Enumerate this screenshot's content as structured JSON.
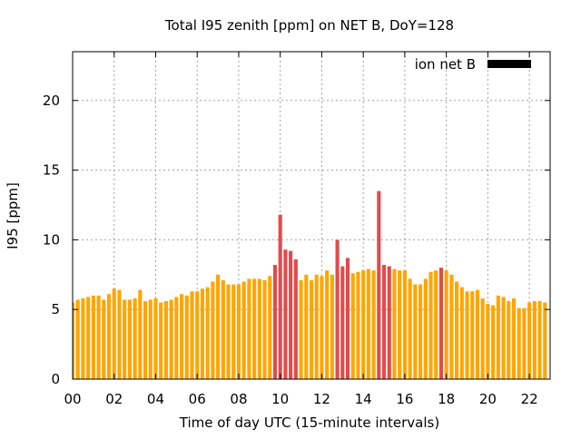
{
  "chart_data": {
    "type": "bar",
    "title": "Total I95 zenith [ppm] on NET B, DoY=128",
    "xlabel": "Time of day UTC (15-minute intervals)",
    "ylabel": "I95 [ppm]",
    "xlim": [
      0,
      23.0
    ],
    "ylim": [
      0,
      23.5
    ],
    "bar_width_hours": 0.18,
    "x_ticks": [
      {
        "value": 0,
        "label": "00"
      },
      {
        "value": 2,
        "label": "02"
      },
      {
        "value": 4,
        "label": "04"
      },
      {
        "value": 6,
        "label": "06"
      },
      {
        "value": 8,
        "label": "08"
      },
      {
        "value": 10,
        "label": "10"
      },
      {
        "value": 12,
        "label": "12"
      },
      {
        "value": 14,
        "label": "14"
      },
      {
        "value": 16,
        "label": "16"
      },
      {
        "value": 18,
        "label": "18"
      },
      {
        "value": 20,
        "label": "20"
      },
      {
        "value": 22,
        "label": "22"
      }
    ],
    "y_ticks": [
      {
        "value": 0,
        "label": "0"
      },
      {
        "value": 5,
        "label": "5"
      },
      {
        "value": 10,
        "label": "10"
      },
      {
        "value": 15,
        "label": "15"
      },
      {
        "value": 20,
        "label": "20"
      }
    ],
    "grid": true,
    "legend": {
      "position": "top-right",
      "label": "ion net B",
      "color": "#000000"
    },
    "colors": {
      "normal": "#ffa500",
      "high": "#e34a4a"
    },
    "series": [
      {
        "name": "ion net B",
        "values": [
          {
            "x": 0.0,
            "y": 5.5,
            "level": "normal"
          },
          {
            "x": 0.25,
            "y": 5.7,
            "level": "normal"
          },
          {
            "x": 0.5,
            "y": 5.8,
            "level": "normal"
          },
          {
            "x": 0.75,
            "y": 5.9,
            "level": "normal"
          },
          {
            "x": 1.0,
            "y": 6.0,
            "level": "normal"
          },
          {
            "x": 1.25,
            "y": 6.0,
            "level": "normal"
          },
          {
            "x": 1.5,
            "y": 5.7,
            "level": "normal"
          },
          {
            "x": 1.75,
            "y": 6.1,
            "level": "normal"
          },
          {
            "x": 2.0,
            "y": 6.5,
            "level": "normal"
          },
          {
            "x": 2.25,
            "y": 6.4,
            "level": "normal"
          },
          {
            "x": 2.5,
            "y": 5.7,
            "level": "normal"
          },
          {
            "x": 2.75,
            "y": 5.7,
            "level": "normal"
          },
          {
            "x": 3.0,
            "y": 5.8,
            "level": "normal"
          },
          {
            "x": 3.25,
            "y": 6.4,
            "level": "normal"
          },
          {
            "x": 3.5,
            "y": 5.6,
            "level": "normal"
          },
          {
            "x": 3.75,
            "y": 5.7,
            "level": "normal"
          },
          {
            "x": 4.0,
            "y": 5.8,
            "level": "normal"
          },
          {
            "x": 4.25,
            "y": 5.5,
            "level": "normal"
          },
          {
            "x": 4.5,
            "y": 5.6,
            "level": "normal"
          },
          {
            "x": 4.75,
            "y": 5.7,
            "level": "normal"
          },
          {
            "x": 5.0,
            "y": 5.9,
            "level": "normal"
          },
          {
            "x": 5.25,
            "y": 6.1,
            "level": "normal"
          },
          {
            "x": 5.5,
            "y": 6.0,
            "level": "normal"
          },
          {
            "x": 5.75,
            "y": 6.3,
            "level": "normal"
          },
          {
            "x": 6.0,
            "y": 6.3,
            "level": "normal"
          },
          {
            "x": 6.25,
            "y": 6.5,
            "level": "normal"
          },
          {
            "x": 6.5,
            "y": 6.6,
            "level": "normal"
          },
          {
            "x": 6.75,
            "y": 7.0,
            "level": "normal"
          },
          {
            "x": 7.0,
            "y": 7.5,
            "level": "normal"
          },
          {
            "x": 7.25,
            "y": 7.1,
            "level": "normal"
          },
          {
            "x": 7.5,
            "y": 6.8,
            "level": "normal"
          },
          {
            "x": 7.75,
            "y": 6.8,
            "level": "normal"
          },
          {
            "x": 8.0,
            "y": 6.8,
            "level": "normal"
          },
          {
            "x": 8.25,
            "y": 7.0,
            "level": "normal"
          },
          {
            "x": 8.5,
            "y": 7.2,
            "level": "normal"
          },
          {
            "x": 8.75,
            "y": 7.2,
            "level": "normal"
          },
          {
            "x": 9.0,
            "y": 7.2,
            "level": "normal"
          },
          {
            "x": 9.25,
            "y": 7.1,
            "level": "normal"
          },
          {
            "x": 9.5,
            "y": 7.4,
            "level": "normal"
          },
          {
            "x": 9.75,
            "y": 8.2,
            "level": "high"
          },
          {
            "x": 10.0,
            "y": 11.8,
            "level": "high"
          },
          {
            "x": 10.25,
            "y": 9.3,
            "level": "high"
          },
          {
            "x": 10.5,
            "y": 9.2,
            "level": "high"
          },
          {
            "x": 10.75,
            "y": 8.6,
            "level": "high"
          },
          {
            "x": 11.0,
            "y": 7.1,
            "level": "normal"
          },
          {
            "x": 11.25,
            "y": 7.5,
            "level": "normal"
          },
          {
            "x": 11.5,
            "y": 7.1,
            "level": "normal"
          },
          {
            "x": 11.75,
            "y": 7.5,
            "level": "normal"
          },
          {
            "x": 12.0,
            "y": 7.4,
            "level": "normal"
          },
          {
            "x": 12.25,
            "y": 7.8,
            "level": "normal"
          },
          {
            "x": 12.5,
            "y": 7.5,
            "level": "normal"
          },
          {
            "x": 12.75,
            "y": 10.0,
            "level": "high"
          },
          {
            "x": 13.0,
            "y": 8.1,
            "level": "high"
          },
          {
            "x": 13.25,
            "y": 8.7,
            "level": "high"
          },
          {
            "x": 13.5,
            "y": 7.6,
            "level": "normal"
          },
          {
            "x": 13.75,
            "y": 7.7,
            "level": "normal"
          },
          {
            "x": 14.0,
            "y": 7.8,
            "level": "normal"
          },
          {
            "x": 14.25,
            "y": 7.9,
            "level": "normal"
          },
          {
            "x": 14.5,
            "y": 7.8,
            "level": "normal"
          },
          {
            "x": 14.75,
            "y": 13.5,
            "level": "high"
          },
          {
            "x": 15.0,
            "y": 8.2,
            "level": "high"
          },
          {
            "x": 15.25,
            "y": 8.1,
            "level": "high"
          },
          {
            "x": 15.5,
            "y": 7.9,
            "level": "normal"
          },
          {
            "x": 15.75,
            "y": 7.8,
            "level": "normal"
          },
          {
            "x": 16.0,
            "y": 7.8,
            "level": "normal"
          },
          {
            "x": 16.25,
            "y": 7.2,
            "level": "normal"
          },
          {
            "x": 16.5,
            "y": 6.8,
            "level": "normal"
          },
          {
            "x": 16.75,
            "y": 6.8,
            "level": "normal"
          },
          {
            "x": 17.0,
            "y": 7.2,
            "level": "normal"
          },
          {
            "x": 17.25,
            "y": 7.7,
            "level": "normal"
          },
          {
            "x": 17.5,
            "y": 7.8,
            "level": "normal"
          },
          {
            "x": 17.75,
            "y": 8.0,
            "level": "high"
          },
          {
            "x": 18.0,
            "y": 7.8,
            "level": "normal"
          },
          {
            "x": 18.25,
            "y": 7.5,
            "level": "normal"
          },
          {
            "x": 18.5,
            "y": 7.0,
            "level": "normal"
          },
          {
            "x": 18.75,
            "y": 6.6,
            "level": "normal"
          },
          {
            "x": 19.0,
            "y": 6.3,
            "level": "normal"
          },
          {
            "x": 19.25,
            "y": 6.3,
            "level": "normal"
          },
          {
            "x": 19.5,
            "y": 6.4,
            "level": "normal"
          },
          {
            "x": 19.75,
            "y": 5.8,
            "level": "normal"
          },
          {
            "x": 20.0,
            "y": 5.4,
            "level": "normal"
          },
          {
            "x": 20.25,
            "y": 5.3,
            "level": "normal"
          },
          {
            "x": 20.5,
            "y": 6.0,
            "level": "normal"
          },
          {
            "x": 20.75,
            "y": 5.9,
            "level": "normal"
          },
          {
            "x": 21.0,
            "y": 5.6,
            "level": "normal"
          },
          {
            "x": 21.25,
            "y": 5.8,
            "level": "normal"
          },
          {
            "x": 21.5,
            "y": 5.1,
            "level": "normal"
          },
          {
            "x": 21.75,
            "y": 5.1,
            "level": "normal"
          },
          {
            "x": 22.0,
            "y": 5.5,
            "level": "normal"
          },
          {
            "x": 22.25,
            "y": 5.6,
            "level": "normal"
          },
          {
            "x": 22.5,
            "y": 5.6,
            "level": "normal"
          },
          {
            "x": 22.75,
            "y": 5.5,
            "level": "normal"
          }
        ]
      }
    ]
  }
}
